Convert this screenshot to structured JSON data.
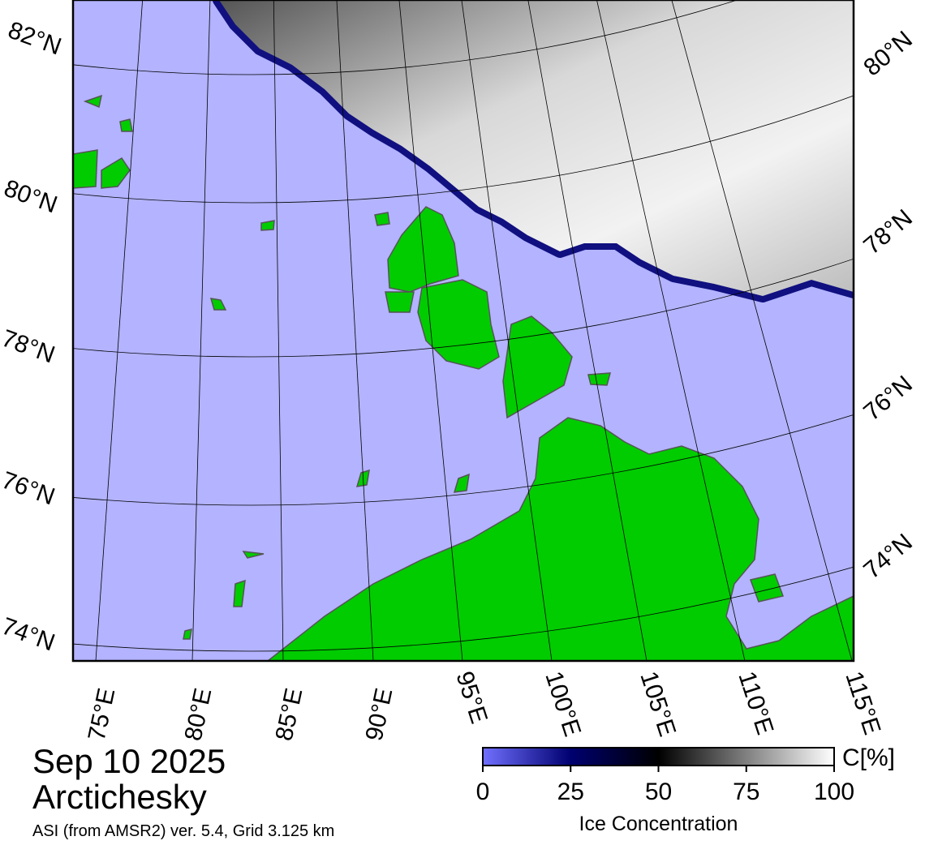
{
  "map": {
    "lat_labels_left": [
      "82°N",
      "80°N",
      "78°N",
      "76°N",
      "74°N"
    ],
    "lat_labels_right": [
      "80°N",
      "78°N",
      "76°N",
      "74°N"
    ],
    "lon_labels": [
      "75°E",
      "80°E",
      "85°E",
      "90°E",
      "95°E",
      "100°E",
      "105°E",
      "110°E",
      "115°E"
    ]
  },
  "title": {
    "date": "Sep 10 2025",
    "region": "Arctichesky",
    "source": "ASI (from AMSR2) ver. 5.4,  Grid 3.125 km"
  },
  "colorbar": {
    "label": "Ice Concentration",
    "unit_label": "C[%]",
    "lim": [
      0,
      100
    ],
    "ticks": [
      0,
      25,
      50,
      75,
      100
    ],
    "colors": [
      "#7070ff",
      "#000070",
      "#000000",
      "#808080",
      "#ffffff"
    ]
  }
}
